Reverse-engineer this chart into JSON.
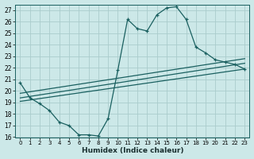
{
  "xlabel": "Humidex (Indice chaleur)",
  "background_color": "#cce8e8",
  "grid_color": "#aacccc",
  "line_color": "#1a6060",
  "xlim": [
    -0.5,
    23.5
  ],
  "ylim": [
    16,
    27.5
  ],
  "xticks": [
    0,
    1,
    2,
    3,
    4,
    5,
    6,
    7,
    8,
    9,
    10,
    11,
    12,
    13,
    14,
    15,
    16,
    17,
    18,
    19,
    20,
    21,
    22,
    23
  ],
  "yticks": [
    16,
    17,
    18,
    19,
    20,
    21,
    22,
    23,
    24,
    25,
    26,
    27
  ],
  "series1_x": [
    0,
    1,
    2,
    3,
    4,
    5,
    6,
    7,
    8,
    9,
    10,
    11,
    12,
    13,
    14,
    15,
    16,
    17,
    18,
    19,
    20,
    21,
    22,
    23
  ],
  "series1_y": [
    20.7,
    19.4,
    18.9,
    18.3,
    17.3,
    17.0,
    16.2,
    16.2,
    16.1,
    17.6,
    21.8,
    26.2,
    25.4,
    25.2,
    26.6,
    27.2,
    27.3,
    26.2,
    23.8,
    23.3,
    22.7,
    22.5,
    22.3,
    21.9
  ],
  "series2_x": [
    0,
    23
  ],
  "series2_y": [
    19.8,
    22.8
  ],
  "series3_x": [
    0,
    23
  ],
  "series3_y": [
    19.4,
    22.4
  ],
  "series4_x": [
    0,
    23
  ],
  "series4_y": [
    19.1,
    21.9
  ]
}
